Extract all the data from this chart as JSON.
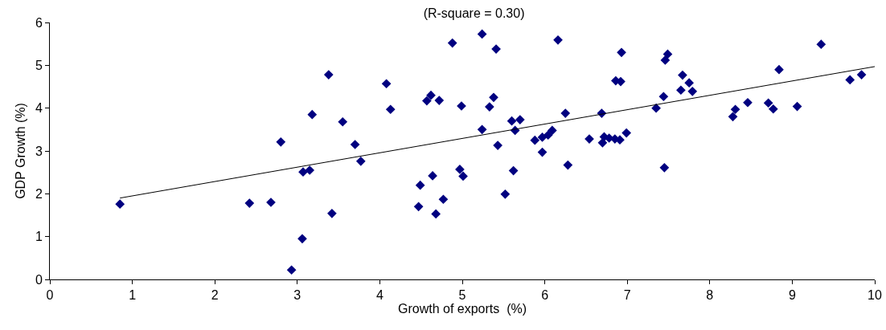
{
  "chart_data": {
    "type": "scatter",
    "title": "(R-square = 0.30)",
    "xlabel": "Growth of exports  (%)",
    "ylabel": "GDP Growth (%)",
    "xlim": [
      0,
      10
    ],
    "xticks": [
      0,
      1,
      2,
      3,
      4,
      5,
      6,
      7,
      8,
      9,
      10
    ],
    "ylim": [
      0,
      6
    ],
    "yticks": [
      0,
      1,
      2,
      3,
      4,
      5,
      6
    ],
    "grid": false,
    "legend": false,
    "marker": "diamond",
    "series": [
      {
        "color": "#000080",
        "x": [
          0.85,
          2.42,
          2.68,
          2.8,
          2.93,
          3.06,
          3.07,
          3.15,
          3.18,
          3.38,
          3.42,
          3.55,
          3.7,
          3.77,
          4.08,
          4.13,
          4.47,
          4.49,
          4.57,
          4.62,
          4.64,
          4.68,
          4.72,
          4.77,
          4.88,
          4.97,
          4.99,
          5.01,
          5.24,
          5.24,
          5.33,
          5.38,
          5.41,
          5.43,
          5.52,
          5.6,
          5.62,
          5.64,
          5.7,
          5.88,
          5.97,
          5.97,
          6.04,
          6.09,
          6.16,
          6.25,
          6.28,
          6.54,
          6.69,
          6.7,
          6.72,
          6.78,
          6.85,
          6.86,
          6.91,
          6.92,
          6.93,
          6.99,
          7.35,
          7.44,
          7.46,
          7.45,
          7.49,
          7.65,
          7.67,
          7.75,
          7.79,
          8.28,
          8.31,
          8.46,
          8.71,
          8.77,
          8.84,
          9.06,
          9.35,
          9.7,
          9.84
        ],
        "values": [
          1.76,
          1.78,
          1.8,
          3.21,
          0.22,
          0.95,
          2.51,
          2.55,
          3.85,
          4.78,
          1.54,
          3.68,
          3.15,
          2.76,
          4.57,
          3.97,
          1.7,
          2.2,
          4.17,
          4.3,
          2.42,
          1.53,
          4.18,
          1.87,
          5.52,
          2.57,
          4.05,
          2.41,
          3.5,
          5.73,
          4.03,
          4.25,
          5.38,
          3.13,
          1.99,
          3.7,
          2.54,
          3.48,
          3.73,
          3.25,
          2.97,
          3.32,
          3.37,
          3.48,
          5.59,
          3.88,
          2.67,
          3.28,
          3.88,
          3.19,
          3.33,
          3.3,
          3.28,
          4.64,
          3.26,
          4.62,
          5.3,
          3.42,
          4.0,
          4.27,
          5.12,
          2.61,
          5.26,
          4.42,
          4.77,
          4.59,
          4.39,
          3.8,
          3.97,
          4.13,
          4.12,
          3.98,
          4.9,
          4.04,
          5.49,
          4.66,
          4.78
        ]
      },
      {
        "type": "line",
        "color": "#000000",
        "marker": "none",
        "line_style": "solid",
        "x": [
          0.85,
          10
        ],
        "values": [
          1.9,
          4.97
        ]
      }
    ]
  }
}
